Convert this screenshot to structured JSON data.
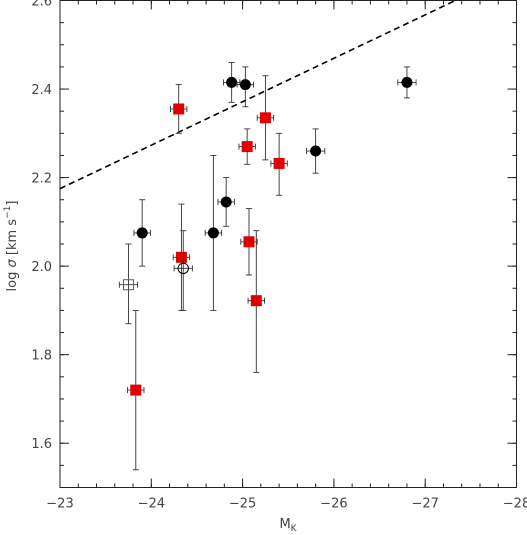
{
  "chart_data": {
    "type": "scatter",
    "xlabel": "M",
    "xlabel_sub": "K",
    "ylabel_prefix": "log ",
    "ylabel_sigma": "σ",
    "ylabel_units": " [km s",
    "ylabel_exp": "−1",
    "ylabel_close": "]",
    "xlim": [
      -23,
      -28
    ],
    "ylim": [
      1.5,
      2.6
    ],
    "x_ticks": [
      -23,
      -24,
      -25,
      -26,
      -27,
      -28
    ],
    "x_tick_labels": [
      "−23",
      "−24",
      "−25",
      "−26",
      "−27",
      "−28"
    ],
    "y_ticks": [
      1.6,
      1.8,
      2.0,
      2.2,
      2.4,
      2.6
    ],
    "y_tick_labels": [
      "1.6",
      "1.8",
      "2.0",
      "2.2",
      "2.4",
      "2.6"
    ],
    "grid": false,
    "colors": {
      "red_square": "#e00000",
      "black_circle": "#000000",
      "open_red": "#a04040"
    },
    "series": [
      {
        "marker": "square-filled",
        "points": [
          {
            "x": -24.3,
            "y": 2.355,
            "xerr": 0.09,
            "y_lo": 2.3,
            "y_hi": 2.41
          },
          {
            "x": -25.25,
            "y": 2.335,
            "xerr": 0.09,
            "y_lo": 2.24,
            "y_hi": 2.43
          },
          {
            "x": -25.05,
            "y": 2.27,
            "xerr": 0.09,
            "y_lo": 2.23,
            "y_hi": 2.31
          },
          {
            "x": -25.4,
            "y": 2.232,
            "xerr": 0.09,
            "y_lo": 2.16,
            "y_hi": 2.3
          },
          {
            "x": -24.33,
            "y": 2.02,
            "xerr": 0.09,
            "y_lo": 1.9,
            "y_hi": 2.14
          },
          {
            "x": -25.07,
            "y": 2.055,
            "xerr": 0.09,
            "y_lo": 1.98,
            "y_hi": 2.13
          },
          {
            "x": -25.15,
            "y": 1.922,
            "xerr": 0.09,
            "y_lo": 1.76,
            "y_hi": 2.08
          },
          {
            "x": -23.83,
            "y": 1.72,
            "xerr": 0.09,
            "y_lo": 1.54,
            "y_hi": 1.9
          }
        ]
      },
      {
        "marker": "circle-filled",
        "points": [
          {
            "x": -24.88,
            "y": 2.415,
            "xerr": 0.09,
            "y_lo": 2.37,
            "y_hi": 2.46
          },
          {
            "x": -25.03,
            "y": 2.41,
            "xerr": 0.09,
            "y_lo": 2.36,
            "y_hi": 2.45
          },
          {
            "x": -26.8,
            "y": 2.415,
            "xerr": 0.1,
            "y_lo": 2.38,
            "y_hi": 2.45
          },
          {
            "x": -25.8,
            "y": 2.26,
            "xerr": 0.1,
            "y_lo": 2.21,
            "y_hi": 2.31
          },
          {
            "x": -24.82,
            "y": 2.145,
            "xerr": 0.09,
            "y_lo": 2.09,
            "y_hi": 2.2
          },
          {
            "x": -23.9,
            "y": 2.075,
            "xerr": 0.09,
            "y_lo": 2.0,
            "y_hi": 2.15
          },
          {
            "x": -24.68,
            "y": 2.075,
            "xerr": 0.09,
            "y_lo": 1.9,
            "y_hi": 2.25
          }
        ]
      },
      {
        "marker": "circle-open",
        "points": [
          {
            "x": -24.35,
            "y": 1.995,
            "xerr": 0.1,
            "y_lo": 1.9,
            "y_hi": 2.08
          }
        ]
      },
      {
        "marker": "square-open",
        "points": [
          {
            "x": -23.75,
            "y": 1.958,
            "xerr": 0.1,
            "y_lo": 1.87,
            "y_hi": 2.05
          }
        ]
      }
    ],
    "line": {
      "style": "dashed",
      "x": [
        -23,
        -27.33
      ],
      "y": [
        2.175,
        2.6
      ]
    }
  }
}
